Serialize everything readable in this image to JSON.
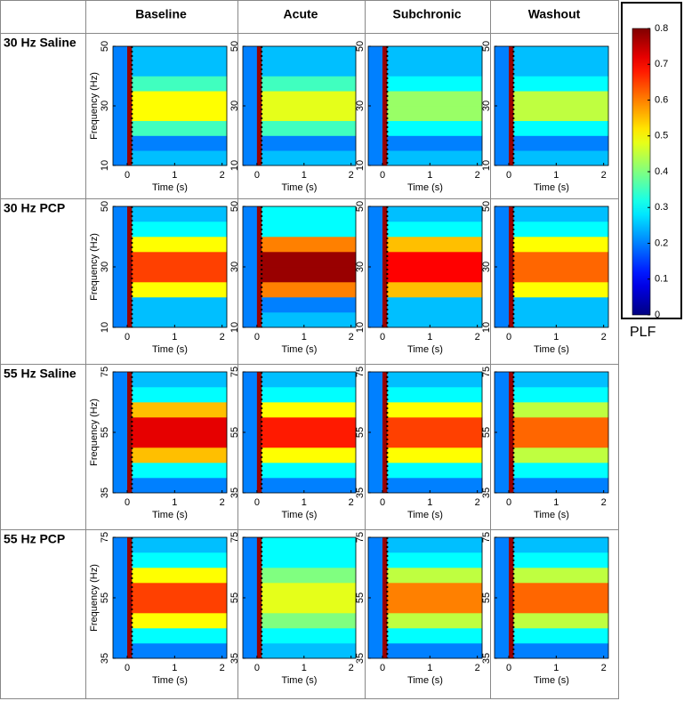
{
  "columns": [
    "Baseline",
    "Acute",
    "Subchronic",
    "Washout"
  ],
  "rows": [
    "30 Hz Saline",
    "30 Hz PCP",
    "55 Hz Saline",
    "55 Hz PCP"
  ],
  "colorbar": {
    "label": "PLF",
    "lim": [
      0,
      0.8
    ],
    "ticks": [
      0,
      0.1,
      0.2,
      0.3,
      0.4,
      0.5,
      0.6,
      0.7,
      0.8
    ]
  },
  "chart_data": [
    {
      "type": "heatmap",
      "ylabel": "Frequency (Hz)",
      "xlabel": "Time (s)",
      "xlim": [
        -0.3,
        2.1
      ],
      "ylim": [
        10,
        50
      ],
      "xticks": [
        0,
        1,
        2
      ],
      "yticks": [
        10,
        30,
        50
      ],
      "x": [
        -0.3,
        0,
        0.1,
        2.1
      ],
      "y": [
        10,
        15,
        20,
        25,
        30,
        35,
        40,
        45,
        50
      ],
      "z": [
        [
          0.2,
          0.78,
          0.25
        ],
        [
          0.2,
          0.78,
          0.2
        ],
        [
          0.2,
          0.78,
          0.35
        ],
        [
          0.2,
          0.78,
          0.5
        ],
        [
          0.2,
          0.78,
          0.5
        ],
        [
          0.2,
          0.78,
          0.35
        ],
        [
          0.2,
          0.78,
          0.25
        ],
        [
          0.2,
          0.78,
          0.25
        ]
      ]
    },
    {
      "type": "heatmap",
      "xlabel": "Time (s)",
      "xlim": [
        -0.3,
        2.1
      ],
      "ylim": [
        10,
        50
      ],
      "xticks": [
        0,
        1,
        2
      ],
      "yticks": [
        10,
        30,
        50
      ],
      "x": [
        -0.3,
        0,
        0.1,
        2.1
      ],
      "y": [
        10,
        15,
        20,
        25,
        30,
        35,
        40,
        45,
        50
      ],
      "z": [
        [
          0.2,
          0.78,
          0.25
        ],
        [
          0.2,
          0.78,
          0.2
        ],
        [
          0.2,
          0.78,
          0.35
        ],
        [
          0.2,
          0.78,
          0.48
        ],
        [
          0.2,
          0.78,
          0.48
        ],
        [
          0.2,
          0.78,
          0.35
        ],
        [
          0.2,
          0.78,
          0.25
        ],
        [
          0.2,
          0.78,
          0.25
        ]
      ]
    },
    {
      "type": "heatmap",
      "xlabel": "Time (s)",
      "xlim": [
        -0.3,
        2.1
      ],
      "ylim": [
        10,
        50
      ],
      "xticks": [
        0,
        1,
        2
      ],
      "yticks": [
        10,
        30,
        50
      ],
      "x": [
        -0.3,
        0,
        0.1,
        2.1
      ],
      "y": [
        10,
        15,
        20,
        25,
        30,
        35,
        40,
        45,
        50
      ],
      "z": [
        [
          0.2,
          0.78,
          0.25
        ],
        [
          0.2,
          0.78,
          0.2
        ],
        [
          0.2,
          0.78,
          0.3
        ],
        [
          0.2,
          0.78,
          0.42
        ],
        [
          0.2,
          0.78,
          0.42
        ],
        [
          0.2,
          0.78,
          0.3
        ],
        [
          0.2,
          0.78,
          0.25
        ],
        [
          0.2,
          0.78,
          0.25
        ]
      ]
    },
    {
      "type": "heatmap",
      "xlabel": "Time (s)",
      "xlim": [
        -0.3,
        2.1
      ],
      "ylim": [
        10,
        50
      ],
      "xticks": [
        0,
        1,
        2
      ],
      "yticks": [
        10,
        30,
        50
      ],
      "x": [
        -0.3,
        0,
        0.1,
        2.1
      ],
      "y": [
        10,
        15,
        20,
        25,
        30,
        35,
        40,
        45,
        50
      ],
      "z": [
        [
          0.2,
          0.78,
          0.25
        ],
        [
          0.2,
          0.78,
          0.2
        ],
        [
          0.2,
          0.78,
          0.3
        ],
        [
          0.2,
          0.78,
          0.45
        ],
        [
          0.2,
          0.78,
          0.45
        ],
        [
          0.2,
          0.78,
          0.3
        ],
        [
          0.2,
          0.78,
          0.25
        ],
        [
          0.2,
          0.78,
          0.25
        ]
      ]
    },
    {
      "type": "heatmap",
      "ylabel": "Frequency (Hz)",
      "xlabel": "Time (s)",
      "xlim": [
        -0.3,
        2.1
      ],
      "ylim": [
        10,
        50
      ],
      "xticks": [
        0,
        1,
        2
      ],
      "yticks": [
        10,
        30,
        50
      ],
      "x": [
        -0.3,
        0,
        0.1,
        2.1
      ],
      "y": [
        10,
        15,
        20,
        25,
        30,
        35,
        40,
        45,
        50
      ],
      "z": [
        [
          0.2,
          0.78,
          0.25
        ],
        [
          0.2,
          0.78,
          0.25
        ],
        [
          0.2,
          0.78,
          0.5
        ],
        [
          0.2,
          0.78,
          0.65
        ],
        [
          0.2,
          0.78,
          0.65
        ],
        [
          0.2,
          0.78,
          0.5
        ],
        [
          0.2,
          0.78,
          0.3
        ],
        [
          0.2,
          0.78,
          0.25
        ]
      ]
    },
    {
      "type": "heatmap",
      "xlabel": "Time (s)",
      "xlim": [
        -0.3,
        2.1
      ],
      "ylim": [
        10,
        50
      ],
      "xticks": [
        0,
        1,
        2
      ],
      "yticks": [
        10,
        30,
        50
      ],
      "x": [
        -0.3,
        0,
        0.1,
        2.1
      ],
      "y": [
        10,
        15,
        20,
        25,
        30,
        35,
        40,
        45,
        50
      ],
      "z": [
        [
          0.2,
          0.78,
          0.25
        ],
        [
          0.2,
          0.78,
          0.2
        ],
        [
          0.2,
          0.78,
          0.6
        ],
        [
          0.2,
          0.78,
          0.78
        ],
        [
          0.2,
          0.78,
          0.78
        ],
        [
          0.2,
          0.78,
          0.6
        ],
        [
          0.2,
          0.78,
          0.3
        ],
        [
          0.2,
          0.78,
          0.3
        ]
      ]
    },
    {
      "type": "heatmap",
      "xlabel": "Time (s)",
      "xlim": [
        -0.3,
        2.1
      ],
      "ylim": [
        10,
        50
      ],
      "xticks": [
        0,
        1,
        2
      ],
      "yticks": [
        10,
        30,
        50
      ],
      "x": [
        -0.3,
        0,
        0.1,
        2.1
      ],
      "y": [
        10,
        15,
        20,
        25,
        30,
        35,
        40,
        45,
        50
      ],
      "z": [
        [
          0.2,
          0.78,
          0.25
        ],
        [
          0.2,
          0.78,
          0.25
        ],
        [
          0.2,
          0.78,
          0.55
        ],
        [
          0.2,
          0.78,
          0.7
        ],
        [
          0.2,
          0.78,
          0.7
        ],
        [
          0.2,
          0.78,
          0.55
        ],
        [
          0.2,
          0.78,
          0.3
        ],
        [
          0.2,
          0.78,
          0.25
        ]
      ]
    },
    {
      "type": "heatmap",
      "xlabel": "Time (s)",
      "xlim": [
        -0.3,
        2.1
      ],
      "ylim": [
        10,
        50
      ],
      "xticks": [
        0,
        1,
        2
      ],
      "yticks": [
        10,
        30,
        50
      ],
      "x": [
        -0.3,
        0,
        0.1,
        2.1
      ],
      "y": [
        10,
        15,
        20,
        25,
        30,
        35,
        40,
        45,
        50
      ],
      "z": [
        [
          0.2,
          0.78,
          0.25
        ],
        [
          0.2,
          0.78,
          0.25
        ],
        [
          0.2,
          0.78,
          0.5
        ],
        [
          0.2,
          0.78,
          0.62
        ],
        [
          0.2,
          0.78,
          0.62
        ],
        [
          0.2,
          0.78,
          0.5
        ],
        [
          0.2,
          0.78,
          0.3
        ],
        [
          0.2,
          0.78,
          0.25
        ]
      ]
    },
    {
      "type": "heatmap",
      "ylabel": "Frequency (Hz)",
      "xlabel": "Time (s)",
      "xlim": [
        -0.3,
        2.1
      ],
      "ylim": [
        35,
        75
      ],
      "xticks": [
        0,
        1,
        2
      ],
      "yticks": [
        35,
        55,
        75
      ],
      "x": [
        -0.3,
        0,
        0.1,
        2.1
      ],
      "y": [
        35,
        40,
        45,
        50,
        55,
        60,
        65,
        70,
        75
      ],
      "z": [
        [
          0.2,
          0.78,
          0.2
        ],
        [
          0.2,
          0.78,
          0.3
        ],
        [
          0.2,
          0.78,
          0.55
        ],
        [
          0.2,
          0.78,
          0.72
        ],
        [
          0.2,
          0.78,
          0.72
        ],
        [
          0.2,
          0.78,
          0.55
        ],
        [
          0.2,
          0.78,
          0.3
        ],
        [
          0.2,
          0.78,
          0.25
        ]
      ]
    },
    {
      "type": "heatmap",
      "xlabel": "Time (s)",
      "xlim": [
        -0.3,
        2.1
      ],
      "ylim": [
        35,
        75
      ],
      "xticks": [
        0,
        1,
        2
      ],
      "yticks": [
        35,
        55,
        75
      ],
      "x": [
        -0.3,
        0,
        0.1,
        2.1
      ],
      "y": [
        35,
        40,
        45,
        50,
        55,
        60,
        65,
        70,
        75
      ],
      "z": [
        [
          0.2,
          0.78,
          0.2
        ],
        [
          0.2,
          0.78,
          0.3
        ],
        [
          0.2,
          0.78,
          0.5
        ],
        [
          0.2,
          0.78,
          0.68
        ],
        [
          0.2,
          0.78,
          0.68
        ],
        [
          0.2,
          0.78,
          0.5
        ],
        [
          0.2,
          0.78,
          0.3
        ],
        [
          0.2,
          0.78,
          0.25
        ]
      ]
    },
    {
      "type": "heatmap",
      "xlabel": "Time (s)",
      "xlim": [
        -0.3,
        2.1
      ],
      "ylim": [
        35,
        75
      ],
      "xticks": [
        0,
        1,
        2
      ],
      "yticks": [
        35,
        55,
        75
      ],
      "x": [
        -0.3,
        0,
        0.1,
        2.1
      ],
      "y": [
        35,
        40,
        45,
        50,
        55,
        60,
        65,
        70,
        75
      ],
      "z": [
        [
          0.2,
          0.78,
          0.2
        ],
        [
          0.2,
          0.78,
          0.3
        ],
        [
          0.2,
          0.78,
          0.5
        ],
        [
          0.2,
          0.78,
          0.65
        ],
        [
          0.2,
          0.78,
          0.65
        ],
        [
          0.2,
          0.78,
          0.5
        ],
        [
          0.2,
          0.78,
          0.3
        ],
        [
          0.2,
          0.78,
          0.25
        ]
      ]
    },
    {
      "type": "heatmap",
      "xlabel": "Time (s)",
      "xlim": [
        -0.3,
        2.1
      ],
      "ylim": [
        35,
        75
      ],
      "xticks": [
        0,
        1,
        2
      ],
      "yticks": [
        35,
        55,
        75
      ],
      "x": [
        -0.3,
        0,
        0.1,
        2.1
      ],
      "y": [
        35,
        40,
        45,
        50,
        55,
        60,
        65,
        70,
        75
      ],
      "z": [
        [
          0.2,
          0.78,
          0.2
        ],
        [
          0.2,
          0.78,
          0.3
        ],
        [
          0.2,
          0.78,
          0.45
        ],
        [
          0.2,
          0.78,
          0.62
        ],
        [
          0.2,
          0.78,
          0.62
        ],
        [
          0.2,
          0.78,
          0.45
        ],
        [
          0.2,
          0.78,
          0.3
        ],
        [
          0.2,
          0.78,
          0.25
        ]
      ]
    },
    {
      "type": "heatmap",
      "ylabel": "Frequency (Hz)",
      "xlabel": "Time (s)",
      "xlim": [
        -0.3,
        2.1
      ],
      "ylim": [
        35,
        75
      ],
      "xticks": [
        0,
        1,
        2
      ],
      "yticks": [
        35,
        55,
        75
      ],
      "x": [
        -0.3,
        0,
        0.1,
        2.1
      ],
      "y": [
        35,
        40,
        45,
        50,
        55,
        60,
        65,
        70,
        75
      ],
      "z": [
        [
          0.2,
          0.78,
          0.2
        ],
        [
          0.2,
          0.78,
          0.3
        ],
        [
          0.2,
          0.78,
          0.5
        ],
        [
          0.2,
          0.78,
          0.65
        ],
        [
          0.2,
          0.78,
          0.65
        ],
        [
          0.2,
          0.78,
          0.5
        ],
        [
          0.2,
          0.78,
          0.3
        ],
        [
          0.2,
          0.78,
          0.25
        ]
      ]
    },
    {
      "type": "heatmap",
      "xlabel": "Time (s)",
      "xlim": [
        -0.3,
        2.1
      ],
      "ylim": [
        35,
        75
      ],
      "xticks": [
        0,
        1,
        2
      ],
      "yticks": [
        35,
        55,
        75
      ],
      "x": [
        -0.3,
        0,
        0.1,
        2.1
      ],
      "y": [
        35,
        40,
        45,
        50,
        55,
        60,
        65,
        70,
        75
      ],
      "z": [
        [
          0.2,
          0.78,
          0.25
        ],
        [
          0.2,
          0.78,
          0.3
        ],
        [
          0.2,
          0.78,
          0.4
        ],
        [
          0.2,
          0.78,
          0.48
        ],
        [
          0.2,
          0.78,
          0.48
        ],
        [
          0.2,
          0.78,
          0.4
        ],
        [
          0.2,
          0.78,
          0.3
        ],
        [
          0.2,
          0.78,
          0.3
        ]
      ]
    },
    {
      "type": "heatmap",
      "xlabel": "Time (s)",
      "xlim": [
        -0.3,
        2.1
      ],
      "ylim": [
        35,
        75
      ],
      "xticks": [
        0,
        1,
        2
      ],
      "yticks": [
        35,
        55,
        75
      ],
      "x": [
        -0.3,
        0,
        0.1,
        2.1
      ],
      "y": [
        35,
        40,
        45,
        50,
        55,
        60,
        65,
        70,
        75
      ],
      "z": [
        [
          0.2,
          0.78,
          0.2
        ],
        [
          0.2,
          0.78,
          0.3
        ],
        [
          0.2,
          0.78,
          0.45
        ],
        [
          0.2,
          0.78,
          0.6
        ],
        [
          0.2,
          0.78,
          0.6
        ],
        [
          0.2,
          0.78,
          0.45
        ],
        [
          0.2,
          0.78,
          0.3
        ],
        [
          0.2,
          0.78,
          0.25
        ]
      ]
    },
    {
      "type": "heatmap",
      "xlabel": "Time (s)",
      "xlim": [
        -0.3,
        2.1
      ],
      "ylim": [
        35,
        75
      ],
      "xticks": [
        0,
        1,
        2
      ],
      "yticks": [
        35,
        55,
        75
      ],
      "x": [
        -0.3,
        0,
        0.1,
        2.1
      ],
      "y": [
        35,
        40,
        45,
        50,
        55,
        60,
        65,
        70,
        75
      ],
      "z": [
        [
          0.2,
          0.78,
          0.2
        ],
        [
          0.2,
          0.78,
          0.3
        ],
        [
          0.2,
          0.78,
          0.45
        ],
        [
          0.2,
          0.78,
          0.62
        ],
        [
          0.2,
          0.78,
          0.62
        ],
        [
          0.2,
          0.78,
          0.45
        ],
        [
          0.2,
          0.78,
          0.3
        ],
        [
          0.2,
          0.78,
          0.25
        ]
      ]
    }
  ]
}
